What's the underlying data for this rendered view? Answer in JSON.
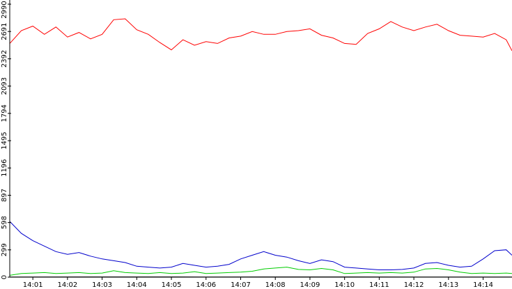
{
  "chart_data": {
    "type": "line",
    "title": "",
    "xlabel": "",
    "ylabel": "",
    "ylim": [
      0,
      2990
    ],
    "y_ticks": [
      "0",
      "299",
      "598",
      "897",
      "1196",
      "1495",
      "1794",
      "2093",
      "2392",
      "2691",
      "2990"
    ],
    "x_ticks": [
      "14:01",
      "14:02",
      "14:03",
      "14:04",
      "14:05",
      "14:06",
      "14:07",
      "14:08",
      "14:09",
      "14:10",
      "14:11",
      "14:12",
      "14:13",
      "14:14"
    ],
    "x_range": [
      "14:00:20",
      "14:14:50"
    ],
    "grid": false,
    "legend": "none",
    "series": [
      {
        "color": "#ff0000",
        "points": [
          [
            "14:00:20",
            2560
          ],
          [
            "14:00:40",
            2700
          ],
          [
            "14:01:00",
            2750
          ],
          [
            "14:01:20",
            2660
          ],
          [
            "14:01:40",
            2740
          ],
          [
            "14:02:00",
            2630
          ],
          [
            "14:02:20",
            2680
          ],
          [
            "14:02:40",
            2610
          ],
          [
            "14:03:00",
            2660
          ],
          [
            "14:03:20",
            2820
          ],
          [
            "14:03:40",
            2830
          ],
          [
            "14:04:00",
            2710
          ],
          [
            "14:04:20",
            2660
          ],
          [
            "14:04:40",
            2570
          ],
          [
            "14:05:00",
            2490
          ],
          [
            "14:05:20",
            2600
          ],
          [
            "14:05:40",
            2540
          ],
          [
            "14:06:00",
            2580
          ],
          [
            "14:06:20",
            2560
          ],
          [
            "14:06:40",
            2620
          ],
          [
            "14:07:00",
            2640
          ],
          [
            "14:07:20",
            2690
          ],
          [
            "14:07:40",
            2660
          ],
          [
            "14:08:00",
            2660
          ],
          [
            "14:08:20",
            2690
          ],
          [
            "14:08:40",
            2700
          ],
          [
            "14:09:00",
            2720
          ],
          [
            "14:09:20",
            2650
          ],
          [
            "14:09:40",
            2620
          ],
          [
            "14:10:00",
            2560
          ],
          [
            "14:10:20",
            2550
          ],
          [
            "14:10:40",
            2670
          ],
          [
            "14:11:00",
            2720
          ],
          [
            "14:11:20",
            2800
          ],
          [
            "14:11:40",
            2740
          ],
          [
            "14:12:00",
            2700
          ],
          [
            "14:12:20",
            2740
          ],
          [
            "14:12:40",
            2770
          ],
          [
            "14:13:00",
            2700
          ],
          [
            "14:13:20",
            2650
          ],
          [
            "14:13:40",
            2640
          ],
          [
            "14:14:00",
            2630
          ],
          [
            "14:14:20",
            2670
          ],
          [
            "14:14:40",
            2600
          ],
          [
            "14:14:50",
            2480
          ]
        ]
      },
      {
        "color": "#0000cc",
        "points": [
          [
            "14:00:20",
            610
          ],
          [
            "14:00:40",
            480
          ],
          [
            "14:01:00",
            400
          ],
          [
            "14:01:20",
            340
          ],
          [
            "14:01:40",
            280
          ],
          [
            "14:02:00",
            250
          ],
          [
            "14:02:20",
            270
          ],
          [
            "14:02:40",
            230
          ],
          [
            "14:03:00",
            200
          ],
          [
            "14:03:20",
            180
          ],
          [
            "14:03:40",
            160
          ],
          [
            "14:04:00",
            120
          ],
          [
            "14:04:20",
            110
          ],
          [
            "14:04:40",
            100
          ],
          [
            "14:05:00",
            110
          ],
          [
            "14:05:20",
            150
          ],
          [
            "14:05:40",
            130
          ],
          [
            "14:06:00",
            110
          ],
          [
            "14:06:20",
            120
          ],
          [
            "14:06:40",
            140
          ],
          [
            "14:07:00",
            200
          ],
          [
            "14:07:20",
            240
          ],
          [
            "14:07:40",
            280
          ],
          [
            "14:08:00",
            240
          ],
          [
            "14:08:20",
            220
          ],
          [
            "14:08:40",
            180
          ],
          [
            "14:09:00",
            150
          ],
          [
            "14:09:20",
            190
          ],
          [
            "14:09:40",
            170
          ],
          [
            "14:10:00",
            110
          ],
          [
            "14:10:20",
            100
          ],
          [
            "14:10:40",
            90
          ],
          [
            "14:11:00",
            80
          ],
          [
            "14:11:20",
            80
          ],
          [
            "14:11:40",
            85
          ],
          [
            "14:12:00",
            100
          ],
          [
            "14:12:20",
            150
          ],
          [
            "14:12:40",
            160
          ],
          [
            "14:13:00",
            130
          ],
          [
            "14:13:20",
            110
          ],
          [
            "14:13:40",
            120
          ],
          [
            "14:14:00",
            200
          ],
          [
            "14:14:20",
            290
          ],
          [
            "14:14:40",
            300
          ],
          [
            "14:14:50",
            240
          ]
        ]
      },
      {
        "color": "#00cc00",
        "points": [
          [
            "14:00:20",
            20
          ],
          [
            "14:00:40",
            40
          ],
          [
            "14:01:00",
            45
          ],
          [
            "14:01:20",
            50
          ],
          [
            "14:01:40",
            40
          ],
          [
            "14:02:00",
            45
          ],
          [
            "14:02:20",
            50
          ],
          [
            "14:02:40",
            40
          ],
          [
            "14:03:00",
            45
          ],
          [
            "14:03:20",
            70
          ],
          [
            "14:03:40",
            50
          ],
          [
            "14:04:00",
            45
          ],
          [
            "14:04:20",
            40
          ],
          [
            "14:04:40",
            50
          ],
          [
            "14:05:00",
            40
          ],
          [
            "14:05:20",
            45
          ],
          [
            "14:05:40",
            60
          ],
          [
            "14:06:00",
            40
          ],
          [
            "14:06:20",
            45
          ],
          [
            "14:06:40",
            50
          ],
          [
            "14:07:00",
            55
          ],
          [
            "14:07:20",
            65
          ],
          [
            "14:07:40",
            90
          ],
          [
            "14:08:00",
            100
          ],
          [
            "14:08:20",
            110
          ],
          [
            "14:08:40",
            85
          ],
          [
            "14:09:00",
            80
          ],
          [
            "14:09:20",
            95
          ],
          [
            "14:09:40",
            80
          ],
          [
            "14:10:00",
            40
          ],
          [
            "14:10:20",
            45
          ],
          [
            "14:10:40",
            50
          ],
          [
            "14:11:00",
            45
          ],
          [
            "14:11:20",
            50
          ],
          [
            "14:11:40",
            45
          ],
          [
            "14:12:00",
            55
          ],
          [
            "14:12:20",
            90
          ],
          [
            "14:12:40",
            95
          ],
          [
            "14:13:00",
            80
          ],
          [
            "14:13:20",
            55
          ],
          [
            "14:13:40",
            40
          ],
          [
            "14:14:00",
            45
          ],
          [
            "14:14:20",
            40
          ],
          [
            "14:14:40",
            45
          ],
          [
            "14:14:50",
            40
          ]
        ]
      },
      {
        "color": "#000000",
        "points": [
          [
            "14:00:20",
            2
          ],
          [
            "14:03:00",
            3
          ],
          [
            "14:06:00",
            2
          ],
          [
            "14:09:00",
            3
          ],
          [
            "14:12:00",
            2
          ],
          [
            "14:14:50",
            2
          ]
        ]
      }
    ]
  }
}
